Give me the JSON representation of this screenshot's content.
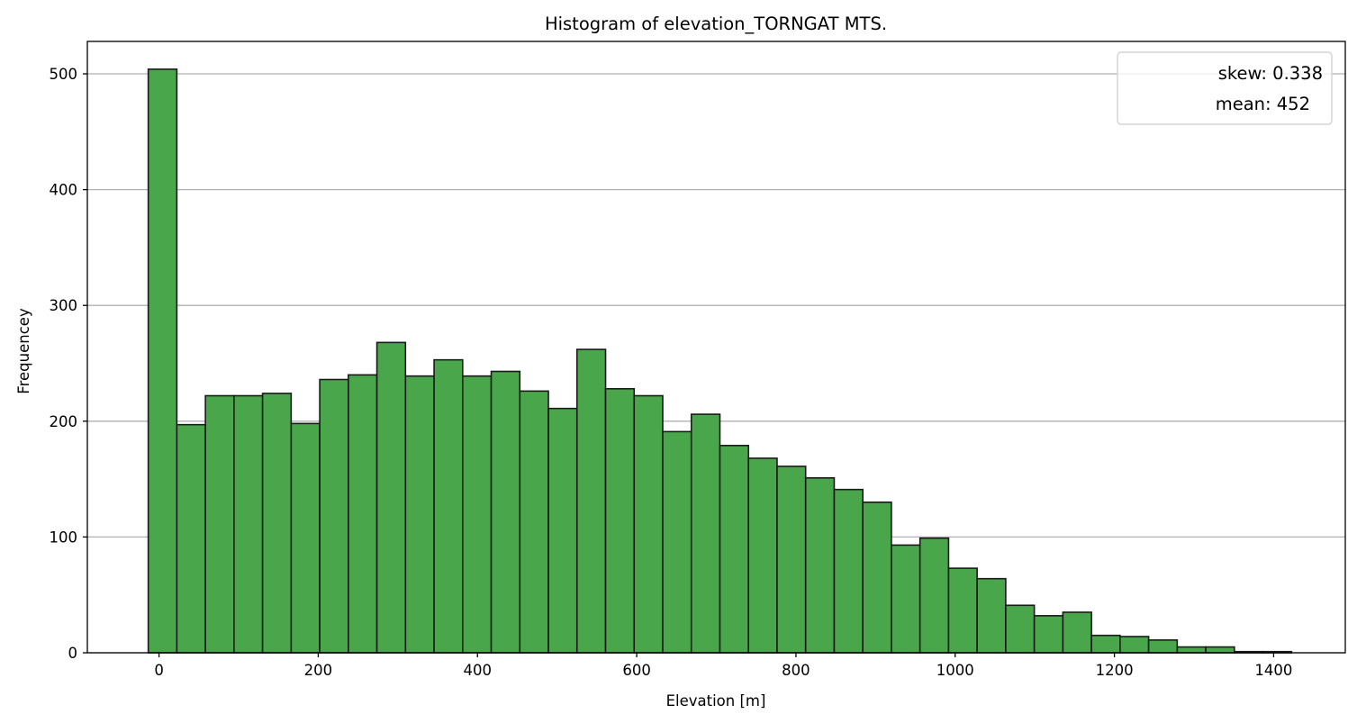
{
  "chart_data": {
    "type": "bar",
    "title": "Histogram of elevation_TORNGAT MTS.",
    "xlabel": "Elevation [m]",
    "ylabel": "Frequencey",
    "xlim": [
      -90,
      1490
    ],
    "ylim": [
      0,
      528
    ],
    "xticks": [
      0,
      200,
      400,
      600,
      800,
      1000,
      1200,
      1400
    ],
    "yticks": [
      0,
      100,
      200,
      300,
      400,
      500
    ],
    "grid": "y",
    "legend_position": "top-right",
    "legend": [
      "skew: 0.338",
      "mean: 452"
    ],
    "bar_color": "#4aa64a",
    "edge_color": "#1a1a1a",
    "bin_edges": [
      -13.5,
      22.4,
      58.3,
      94.2,
      130.1,
      166.0,
      201.9,
      237.8,
      273.7,
      309.6,
      345.5,
      381.4,
      417.3,
      453.2,
      489.1,
      525.0,
      560.9,
      596.8,
      632.7,
      668.6,
      704.5,
      740.4,
      776.3,
      812.2,
      848.1,
      884.0,
      919.9,
      955.8,
      991.7,
      1027.6,
      1063.5,
      1099.4,
      1135.3,
      1171.2,
      1207.1,
      1243.0,
      1278.9,
      1314.8,
      1350.7,
      1386.6,
      1422.5
    ],
    "values": [
      504,
      197,
      222,
      222,
      224,
      198,
      236,
      240,
      268,
      239,
      253,
      239,
      243,
      226,
      211,
      262,
      228,
      222,
      191,
      206,
      179,
      168,
      161,
      151,
      141,
      130,
      93,
      99,
      73,
      64,
      41,
      32,
      35,
      15,
      14,
      11,
      5,
      5,
      1,
      1
    ]
  }
}
